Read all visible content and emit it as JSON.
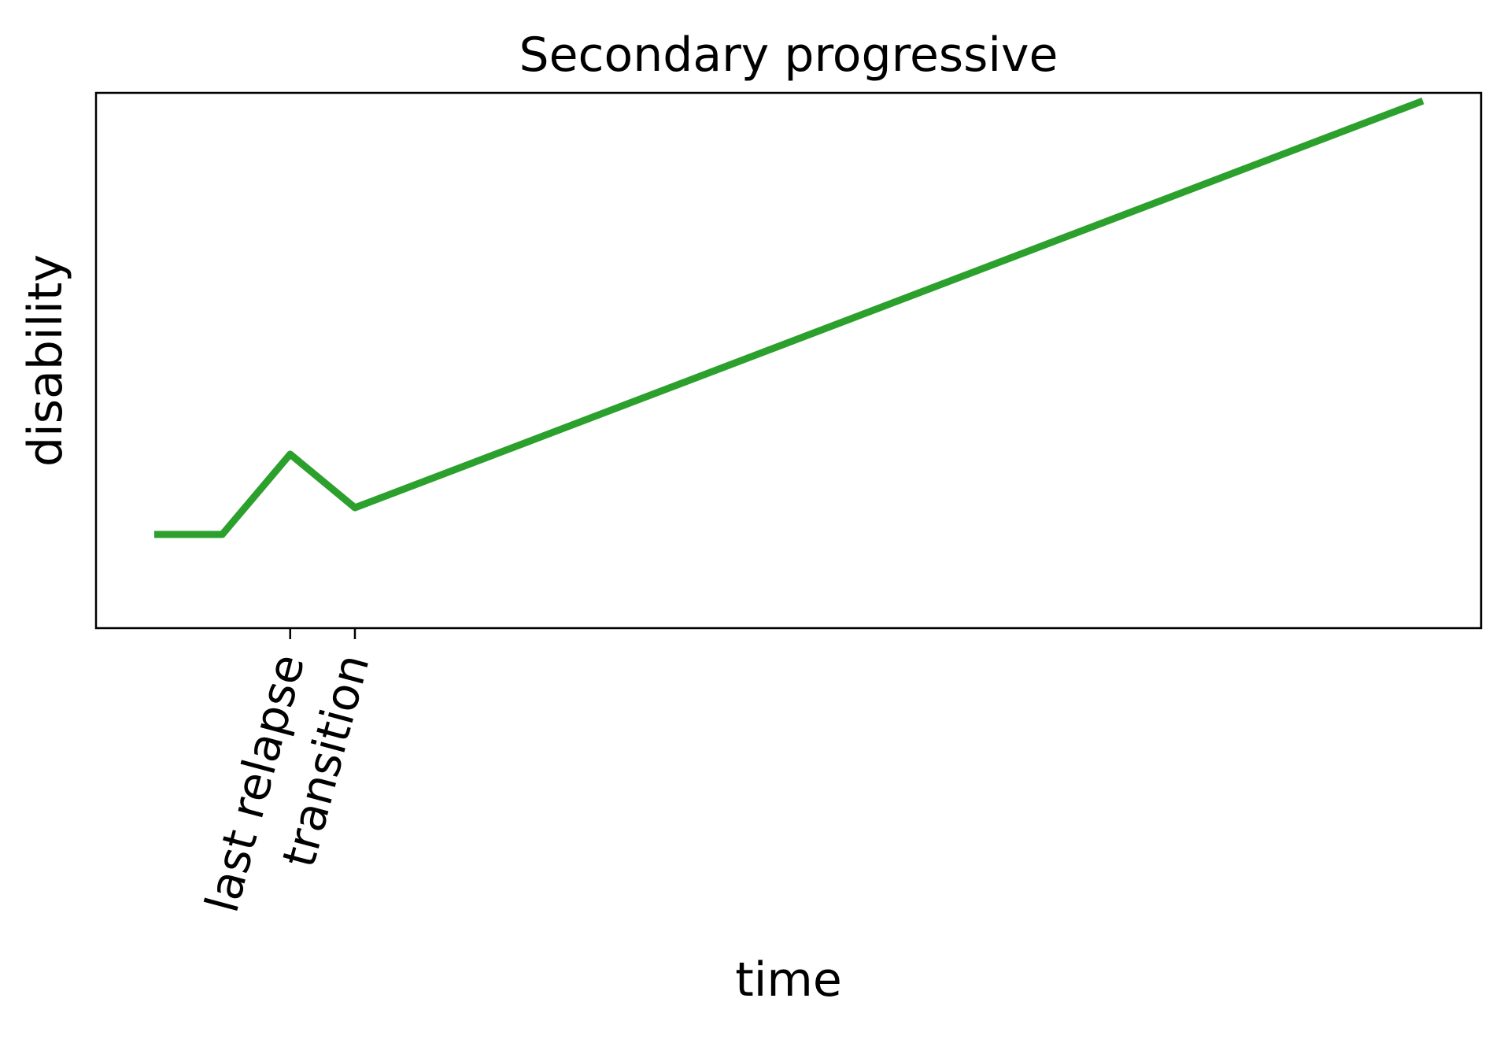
{
  "chart_data": {
    "type": "line",
    "title": "Secondary progressive",
    "xlabel": "time",
    "ylabel": "disability",
    "xlim": [
      -0.9,
      20.5
    ],
    "ylim": [
      -0.5,
      9.5
    ],
    "grid": false,
    "legend": "none",
    "x_ticks": [
      {
        "value": 2.1,
        "label": "last relapse"
      },
      {
        "value": 3.1,
        "label": "transition"
      }
    ],
    "series": [
      {
        "color": "#2ca02c",
        "x": [
          0,
          1.05,
          2.1,
          3.1,
          19.6
        ],
        "y": [
          1.25,
          1.25,
          2.75,
          1.75,
          9.35
        ]
      }
    ],
    "show_y_ticks": false
  }
}
